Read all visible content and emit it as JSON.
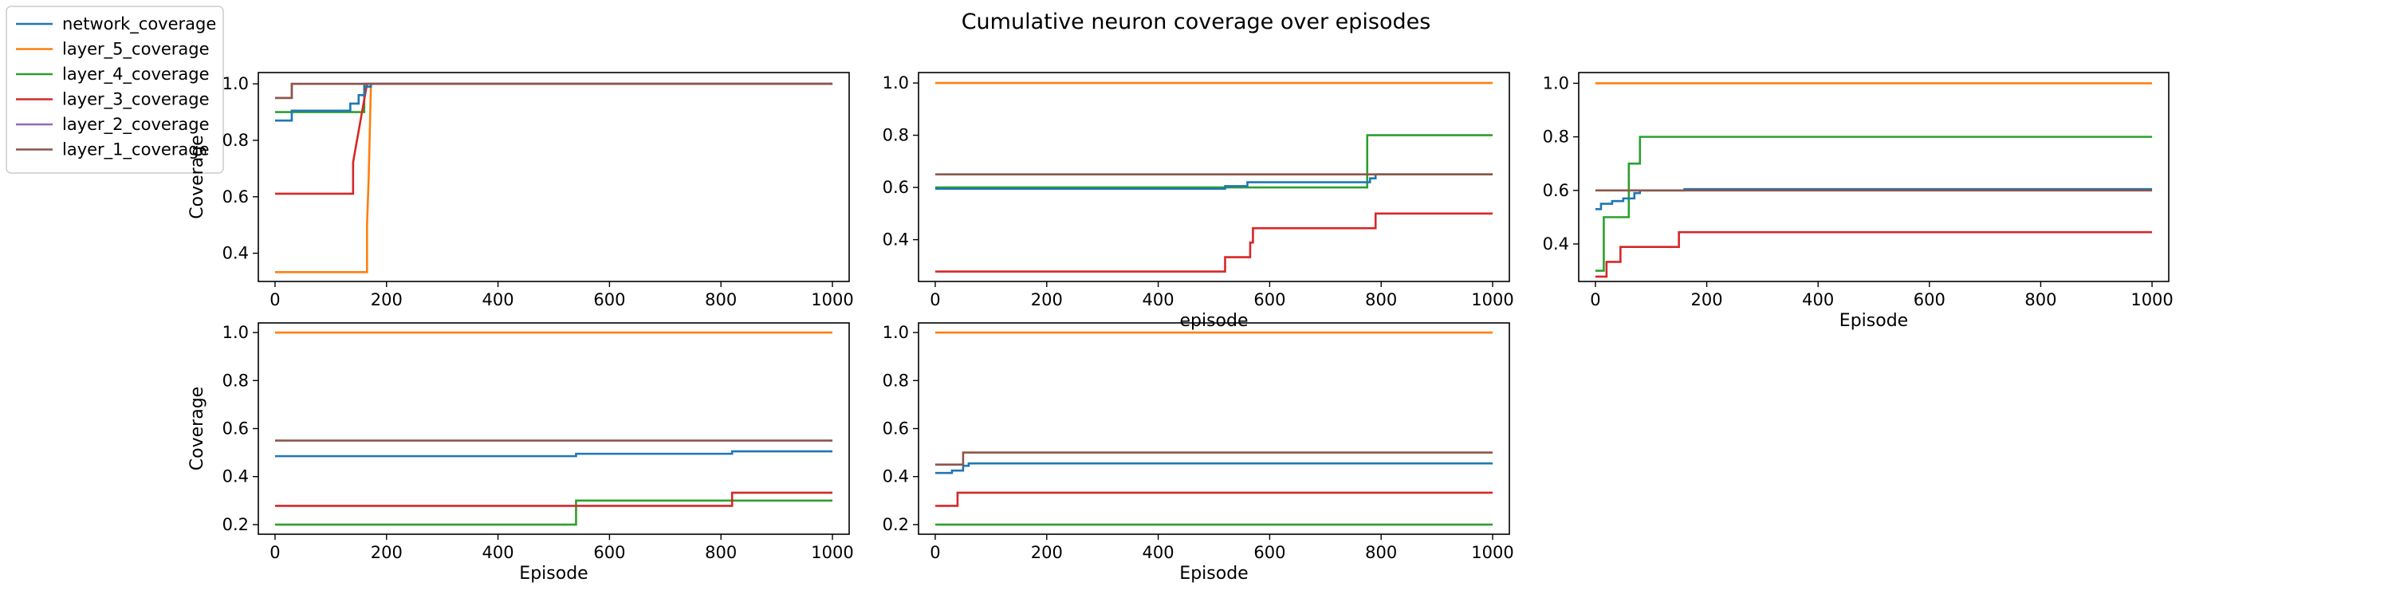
{
  "figure": {
    "title": "Cumulative neuron coverage over episodes"
  },
  "legend": {
    "placement": "upper-left-outside",
    "entries": [
      {
        "name": "network_coverage",
        "color": "#1f77b4"
      },
      {
        "name": "layer_5_coverage",
        "color": "#ff7f0e"
      },
      {
        "name": "layer_4_coverage",
        "color": "#2ca02c"
      },
      {
        "name": "layer_3_coverage",
        "color": "#d62728"
      },
      {
        "name": "layer_2_coverage",
        "color": "#9467bd"
      },
      {
        "name": "layer_1_coverage",
        "color": "#8c564b"
      }
    ]
  },
  "chart_data": [
    {
      "type": "line",
      "xlabel": "",
      "ylabel": "Coverage",
      "xlim": [
        -30,
        1030
      ],
      "ylim": [
        0.3,
        1.04
      ],
      "xticks": [
        "0",
        "200",
        "400",
        "600",
        "800",
        "1000"
      ],
      "yticks": [
        "0.4",
        "0.6",
        "0.8",
        "1.0"
      ],
      "series": [
        {
          "name": "layer_5_coverage",
          "color": "#ff7f0e",
          "points": [
            [
              0,
              0.333
            ],
            [
              165,
              0.333
            ],
            [
              165,
              0.5
            ],
            [
              168,
              0.667
            ],
            [
              170,
              0.833
            ],
            [
              172,
              1.0
            ],
            [
              1000,
              1.0
            ]
          ]
        },
        {
          "name": "layer_4_coverage",
          "color": "#2ca02c",
          "points": [
            [
              0,
              0.9
            ],
            [
              160,
              0.9
            ],
            [
              160,
              1.0
            ],
            [
              1000,
              1.0
            ]
          ]
        },
        {
          "name": "layer_3_coverage",
          "color": "#d62728",
          "points": [
            [
              0,
              0.611
            ],
            [
              140,
              0.611
            ],
            [
              140,
              0.722
            ],
            [
              145,
              0.778
            ],
            [
              150,
              0.833
            ],
            [
              155,
              0.889
            ],
            [
              160,
              0.944
            ],
            [
              165,
              1.0
            ],
            [
              1000,
              1.0
            ]
          ]
        },
        {
          "name": "network_coverage",
          "color": "#1f77b4",
          "points": [
            [
              0,
              0.87
            ],
            [
              30,
              0.87
            ],
            [
              30,
              0.905
            ],
            [
              135,
              0.905
            ],
            [
              135,
              0.93
            ],
            [
              150,
              0.93
            ],
            [
              150,
              0.96
            ],
            [
              160,
              0.96
            ],
            [
              160,
              0.99
            ],
            [
              172,
              0.99
            ],
            [
              172,
              1.0
            ],
            [
              1000,
              1.0
            ]
          ]
        },
        {
          "name": "layer_2_coverage",
          "color": "#9467bd",
          "points": [
            [
              0,
              0.95
            ],
            [
              30,
              0.95
            ],
            [
              30,
              1.0
            ],
            [
              1000,
              1.0
            ]
          ]
        },
        {
          "name": "layer_1_coverage",
          "color": "#8c564b",
          "points": [
            [
              0,
              0.95
            ],
            [
              30,
              0.95
            ],
            [
              30,
              1.0
            ],
            [
              1000,
              1.0
            ]
          ]
        }
      ]
    },
    {
      "type": "line",
      "xlabel": "episode",
      "ylabel": "",
      "xlim": [
        -30,
        1030
      ],
      "ylim": [
        0.24,
        1.04
      ],
      "xticks": [
        "0",
        "200",
        "400",
        "600",
        "800",
        "1000"
      ],
      "yticks": [
        "0.4",
        "0.6",
        "0.8",
        "1.0"
      ],
      "series": [
        {
          "name": "layer_5_coverage",
          "color": "#ff7f0e",
          "points": [
            [
              0,
              1.0
            ],
            [
              1000,
              1.0
            ]
          ]
        },
        {
          "name": "layer_4_coverage",
          "color": "#2ca02c",
          "points": [
            [
              0,
              0.6
            ],
            [
              775,
              0.6
            ],
            [
              775,
              0.8
            ],
            [
              1000,
              0.8
            ]
          ]
        },
        {
          "name": "layer_3_coverage",
          "color": "#d62728",
          "points": [
            [
              0,
              0.278
            ],
            [
              520,
              0.278
            ],
            [
              520,
              0.333
            ],
            [
              565,
              0.333
            ],
            [
              565,
              0.389
            ],
            [
              570,
              0.389
            ],
            [
              570,
              0.444
            ],
            [
              790,
              0.444
            ],
            [
              790,
              0.5
            ],
            [
              1000,
              0.5
            ]
          ]
        },
        {
          "name": "network_coverage",
          "color": "#1f77b4",
          "points": [
            [
              0,
              0.595
            ],
            [
              520,
              0.595
            ],
            [
              520,
              0.605
            ],
            [
              560,
              0.605
            ],
            [
              560,
              0.62
            ],
            [
              780,
              0.62
            ],
            [
              780,
              0.635
            ],
            [
              790,
              0.635
            ],
            [
              790,
              0.65
            ],
            [
              1000,
              0.65
            ]
          ]
        },
        {
          "name": "layer_1_coverage",
          "color": "#8c564b",
          "points": [
            [
              0,
              0.65
            ],
            [
              1000,
              0.65
            ]
          ]
        }
      ]
    },
    {
      "type": "line",
      "xlabel": "Episode",
      "ylabel": "",
      "xlim": [
        -30,
        1030
      ],
      "ylim": [
        0.26,
        1.04
      ],
      "xticks": [
        "0",
        "200",
        "400",
        "600",
        "800",
        "1000"
      ],
      "yticks": [
        "0.4",
        "0.6",
        "0.8",
        "1.0"
      ],
      "series": [
        {
          "name": "layer_5_coverage",
          "color": "#ff7f0e",
          "points": [
            [
              0,
              1.0
            ],
            [
              1000,
              1.0
            ]
          ]
        },
        {
          "name": "layer_4_coverage",
          "color": "#2ca02c",
          "points": [
            [
              0,
              0.3
            ],
            [
              15,
              0.3
            ],
            [
              15,
              0.5
            ],
            [
              60,
              0.5
            ],
            [
              60,
              0.7
            ],
            [
              80,
              0.7
            ],
            [
              80,
              0.8
            ],
            [
              1000,
              0.8
            ]
          ]
        },
        {
          "name": "layer_3_coverage",
          "color": "#d62728",
          "points": [
            [
              0,
              0.278
            ],
            [
              20,
              0.278
            ],
            [
              20,
              0.333
            ],
            [
              45,
              0.333
            ],
            [
              45,
              0.389
            ],
            [
              150,
              0.389
            ],
            [
              150,
              0.444
            ],
            [
              1000,
              0.444
            ]
          ]
        },
        {
          "name": "network_coverage",
          "color": "#1f77b4",
          "points": [
            [
              0,
              0.53
            ],
            [
              10,
              0.53
            ],
            [
              10,
              0.55
            ],
            [
              30,
              0.55
            ],
            [
              30,
              0.56
            ],
            [
              50,
              0.56
            ],
            [
              50,
              0.57
            ],
            [
              70,
              0.57
            ],
            [
              70,
              0.59
            ],
            [
              80,
              0.59
            ],
            [
              80,
              0.6
            ],
            [
              160,
              0.6
            ],
            [
              160,
              0.605
            ],
            [
              1000,
              0.605
            ]
          ]
        },
        {
          "name": "layer_1_coverage",
          "color": "#8c564b",
          "points": [
            [
              0,
              0.6
            ],
            [
              1000,
              0.6
            ]
          ]
        }
      ]
    },
    {
      "type": "line",
      "xlabel": "Episode",
      "ylabel": "Coverage",
      "xlim": [
        -30,
        1030
      ],
      "ylim": [
        0.16,
        1.04
      ],
      "xticks": [
        "0",
        "200",
        "400",
        "600",
        "800",
        "1000"
      ],
      "yticks": [
        "0.2",
        "0.4",
        "0.6",
        "0.8",
        "1.0"
      ],
      "series": [
        {
          "name": "layer_5_coverage",
          "color": "#ff7f0e",
          "points": [
            [
              0,
              1.0
            ],
            [
              1000,
              1.0
            ]
          ]
        },
        {
          "name": "layer_4_coverage",
          "color": "#2ca02c",
          "points": [
            [
              0,
              0.2
            ],
            [
              540,
              0.2
            ],
            [
              540,
              0.3
            ],
            [
              1000,
              0.3
            ]
          ]
        },
        {
          "name": "layer_3_coverage",
          "color": "#d62728",
          "points": [
            [
              0,
              0.278
            ],
            [
              820,
              0.278
            ],
            [
              820,
              0.333
            ],
            [
              1000,
              0.333
            ]
          ]
        },
        {
          "name": "network_coverage",
          "color": "#1f77b4",
          "points": [
            [
              0,
              0.485
            ],
            [
              540,
              0.485
            ],
            [
              540,
              0.495
            ],
            [
              820,
              0.495
            ],
            [
              820,
              0.505
            ],
            [
              1000,
              0.505
            ]
          ]
        },
        {
          "name": "layer_1_coverage",
          "color": "#8c564b",
          "points": [
            [
              0,
              0.55
            ],
            [
              1000,
              0.55
            ]
          ]
        }
      ]
    },
    {
      "type": "line",
      "xlabel": "Episode",
      "ylabel": "",
      "xlim": [
        -30,
        1030
      ],
      "ylim": [
        0.16,
        1.04
      ],
      "xticks": [
        "0",
        "200",
        "400",
        "600",
        "800",
        "1000"
      ],
      "yticks": [
        "0.2",
        "0.4",
        "0.6",
        "0.8",
        "1.0"
      ],
      "series": [
        {
          "name": "layer_5_coverage",
          "color": "#ff7f0e",
          "points": [
            [
              0,
              1.0
            ],
            [
              1000,
              1.0
            ]
          ]
        },
        {
          "name": "layer_4_coverage",
          "color": "#2ca02c",
          "points": [
            [
              0,
              0.2
            ],
            [
              1000,
              0.2
            ]
          ]
        },
        {
          "name": "layer_3_coverage",
          "color": "#d62728",
          "points": [
            [
              0,
              0.278
            ],
            [
              40,
              0.278
            ],
            [
              40,
              0.333
            ],
            [
              1000,
              0.333
            ]
          ]
        },
        {
          "name": "network_coverage",
          "color": "#1f77b4",
          "points": [
            [
              0,
              0.415
            ],
            [
              30,
              0.415
            ],
            [
              30,
              0.425
            ],
            [
              50,
              0.425
            ],
            [
              50,
              0.445
            ],
            [
              60,
              0.445
            ],
            [
              60,
              0.455
            ],
            [
              1000,
              0.455
            ]
          ]
        },
        {
          "name": "layer_1_coverage",
          "color": "#8c564b",
          "points": [
            [
              0,
              0.45
            ],
            [
              50,
              0.45
            ],
            [
              50,
              0.5
            ],
            [
              1000,
              0.5
            ]
          ]
        }
      ]
    }
  ]
}
